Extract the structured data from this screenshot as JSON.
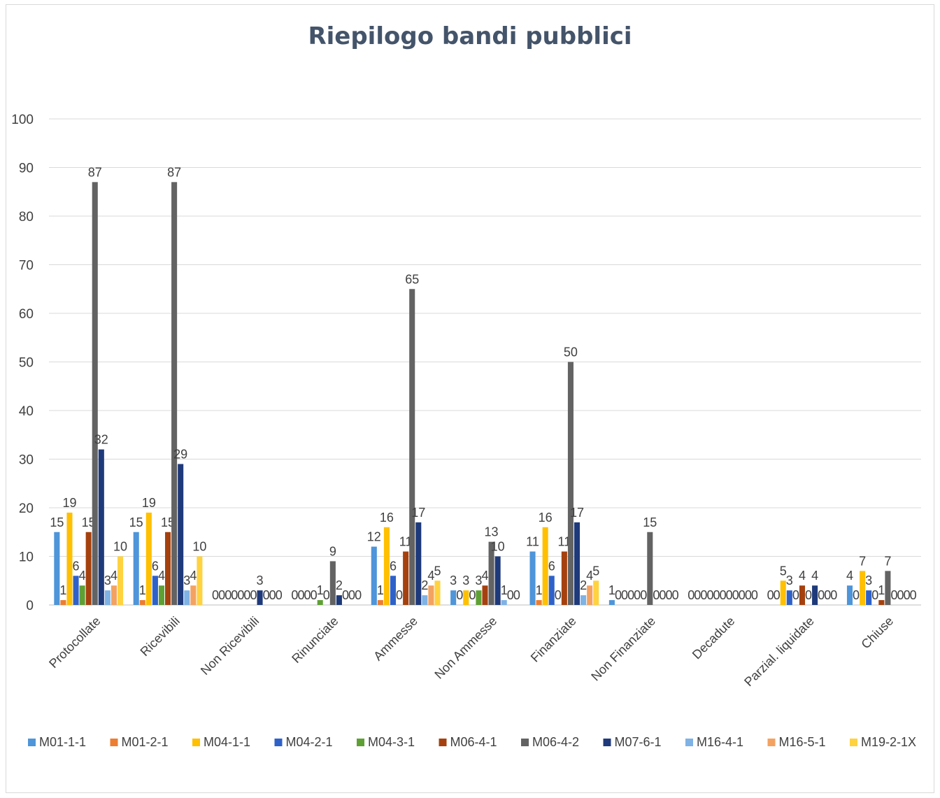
{
  "chart_data": {
    "type": "bar",
    "title": "Riepilogo bandi pubblici",
    "ylim": [
      0,
      100
    ],
    "ytick_step": 10,
    "grid": true,
    "legend_position": "bottom",
    "categories": [
      "Protocollate",
      "Ricevibili",
      "Non Ricevibili",
      "Rinunciate",
      "Ammesse",
      "Non Ammesse",
      "Finanziate",
      "Non Finanziate",
      "Decadute",
      "Parzial. liquidate",
      "Chiuse"
    ],
    "series": [
      {
        "name": "M01-1-1",
        "color": "#4e95d9",
        "values": [
          15,
          15,
          0,
          0,
          12,
          3,
          11,
          1,
          0,
          0,
          4
        ]
      },
      {
        "name": "M01-2-1",
        "color": "#ed7d31",
        "values": [
          1,
          1,
          0,
          0,
          1,
          0,
          1,
          0,
          0,
          0,
          0
        ]
      },
      {
        "name": "M04-1-1",
        "color": "#ffc000",
        "values": [
          19,
          19,
          0,
          0,
          16,
          3,
          16,
          0,
          0,
          5,
          7
        ]
      },
      {
        "name": "M04-2-1",
        "color": "#2e62c9",
        "values": [
          6,
          6,
          0,
          0,
          6,
          0,
          6,
          0,
          0,
          3,
          3
        ]
      },
      {
        "name": "M04-3-1",
        "color": "#5fa035",
        "values": [
          4,
          4,
          0,
          1,
          0,
          3,
          0,
          0,
          0,
          0,
          0
        ]
      },
      {
        "name": "M06-4-1",
        "color": "#a5410e",
        "values": [
          15,
          15,
          0,
          0,
          11,
          4,
          11,
          0,
          0,
          4,
          1
        ]
      },
      {
        "name": "M06-4-2",
        "color": "#636363",
        "values": [
          87,
          87,
          0,
          9,
          65,
          13,
          50,
          15,
          0,
          0,
          7
        ]
      },
      {
        "name": "M07-6-1",
        "color": "#1f3a7a",
        "values": [
          32,
          29,
          3,
          2,
          17,
          10,
          17,
          0,
          0,
          4,
          0
        ]
      },
      {
        "name": "M16-4-1",
        "color": "#7fb2e5",
        "values": [
          3,
          3,
          0,
          0,
          2,
          1,
          2,
          0,
          0,
          0,
          0
        ]
      },
      {
        "name": "M16-5-1",
        "color": "#f4a261",
        "values": [
          4,
          4,
          0,
          0,
          4,
          0,
          4,
          0,
          0,
          0,
          0
        ]
      },
      {
        "name": "M19-2-1X",
        "color": "#ffd23f",
        "values": [
          10,
          10,
          0,
          0,
          5,
          0,
          5,
          0,
          0,
          0,
          0
        ]
      }
    ]
  }
}
